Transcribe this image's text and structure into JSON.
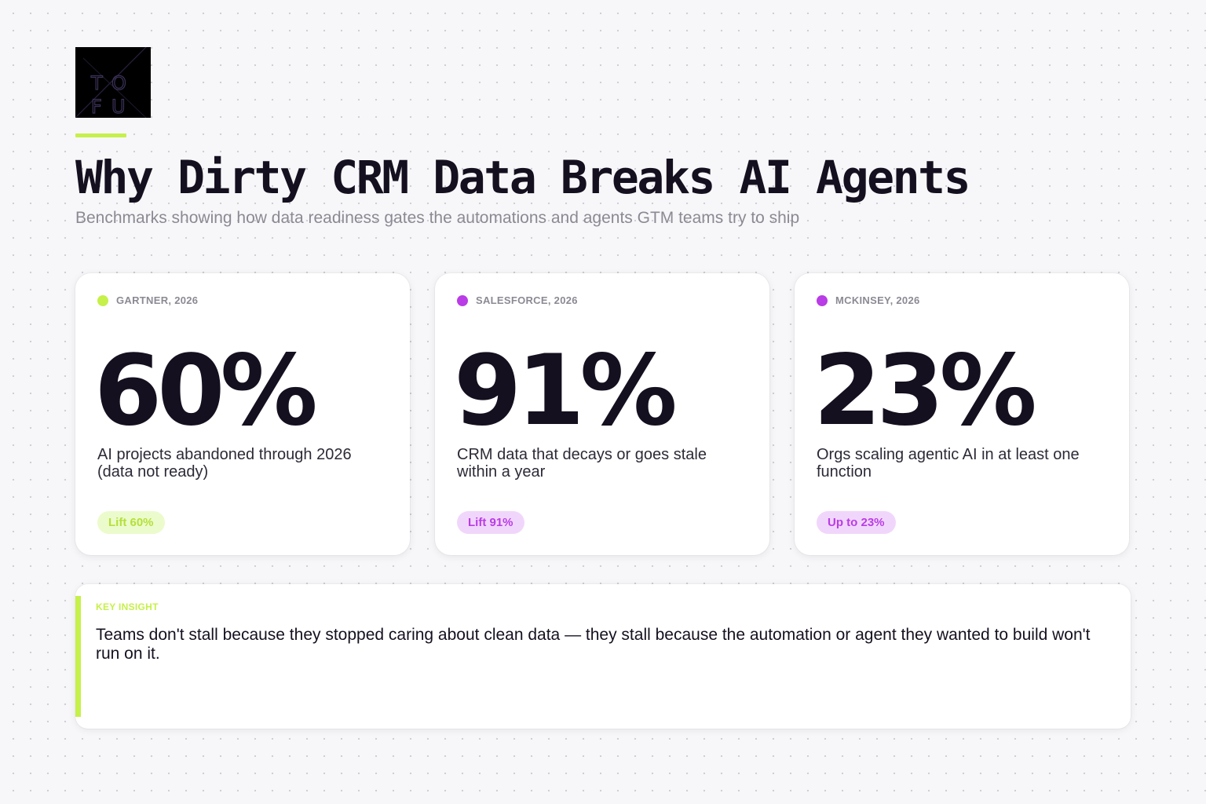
{
  "brand": {
    "logo_icon": "tofu-logo-icon",
    "logo_letters": [
      "T",
      "O",
      "F",
      "U"
    ]
  },
  "header": {
    "title": "Why Dirty CRM Data Breaks AI Agents",
    "subtitle": "Benchmarks showing how data readiness gates the automations and agents GTM teams try to ship"
  },
  "colors": {
    "lime": "#c6f04a",
    "purple": "#b93ce6",
    "lime_pill_bg": "#ecfbcc",
    "purple_pill_bg": "#f1d6fb",
    "text_dark": "#15101f",
    "text_muted": "#8b8a93"
  },
  "cards": [
    {
      "source": "GARTNER, 2026",
      "value": "60%",
      "description": "AI projects abandoned through 2026 (data not ready)",
      "tag": "Lift 60%",
      "accent": "#c6f04a",
      "pill_bg": "#ecfbcc",
      "pill_text": "#b4e03a"
    },
    {
      "source": "SALESFORCE, 2026",
      "value": "91%",
      "description": "CRM data that decays or goes stale within a year",
      "tag": "Lift 91%",
      "accent": "#b93ce6",
      "pill_bg": "#f1d6fb",
      "pill_text": "#b93ce6"
    },
    {
      "source": "MCKINSEY, 2026",
      "value": "23%",
      "description": "Orgs scaling agentic AI in at least one function",
      "tag": "Up to 23%",
      "accent": "#b93ce6",
      "pill_bg": "#f1d6fb",
      "pill_text": "#b93ce6"
    }
  ],
  "insight": {
    "label": "KEY INSIGHT",
    "text": "Teams don't stall because they stopped caring about clean data — they stall because the automation or agent they wanted to build won't run on it.",
    "accent": "#c6f04a"
  }
}
